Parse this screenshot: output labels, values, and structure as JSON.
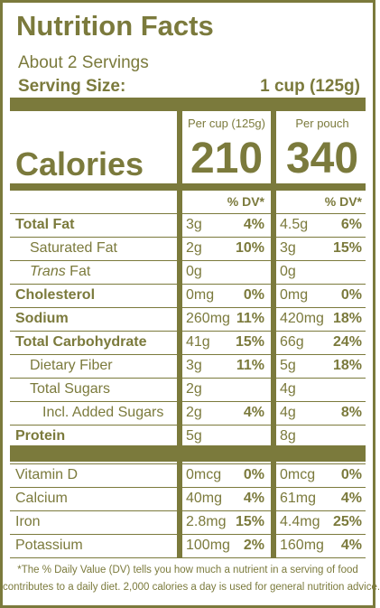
{
  "header": {
    "title": "Nutrition Facts",
    "servings": "About 2 Servings",
    "serving_size_label": "Serving Size:",
    "serving_size_value": "1 cup (125g)"
  },
  "columns": [
    "Per cup (125g)",
    "Per pouch"
  ],
  "calories": {
    "label": "Calories",
    "values": [
      210,
      340
    ]
  },
  "dv_header": [
    "% DV*",
    "% DV*"
  ],
  "nutrients": [
    {
      "name": "Total Fat",
      "bold": true,
      "indent": 0,
      "amounts": [
        "3g",
        "4.5g"
      ],
      "dv": [
        "4%",
        "6%"
      ]
    },
    {
      "name": "Saturated Fat",
      "bold": false,
      "indent": 1,
      "amounts": [
        "2g",
        "3g"
      ],
      "dv": [
        "10%",
        "15%"
      ]
    },
    {
      "name": {
        "italic": "Trans",
        "rest": "Fat"
      },
      "bold": false,
      "indent": 1,
      "amounts": [
        "0g",
        "0g"
      ],
      "dv": [
        null,
        null
      ]
    },
    {
      "name": "Cholesterol",
      "bold": true,
      "indent": 0,
      "amounts": [
        "0mg",
        "0mg"
      ],
      "dv": [
        "0%",
        "0%"
      ]
    },
    {
      "name": "Sodium",
      "bold": true,
      "indent": 0,
      "amounts": [
        "260mg",
        "420mg"
      ],
      "dv": [
        "11%",
        "18%"
      ]
    },
    {
      "name": "Total Carbohydrate",
      "bold": true,
      "indent": 0,
      "amounts": [
        "41g",
        "66g"
      ],
      "dv": [
        "15%",
        "24%"
      ]
    },
    {
      "name": "Dietary Fiber",
      "bold": false,
      "indent": 1,
      "amounts": [
        "3g",
        "5g"
      ],
      "dv": [
        "11%",
        "18%"
      ]
    },
    {
      "name": "Total Sugars",
      "bold": false,
      "indent": 1,
      "amounts": [
        "2g",
        "4g"
      ],
      "dv": [
        null,
        null
      ]
    },
    {
      "name": "Incl. Added Sugars",
      "bold": false,
      "indent": 2,
      "amounts": [
        "2g",
        "4g"
      ],
      "dv": [
        "4%",
        "8%"
      ]
    },
    {
      "name": "Protein",
      "bold": true,
      "indent": 0,
      "amounts": [
        "5g",
        "8g"
      ],
      "dv": [
        null,
        null
      ]
    }
  ],
  "vitamins": [
    {
      "name": "Vitamin D",
      "amounts": [
        "0mcg",
        "0mcg"
      ],
      "dv": [
        "0%",
        "0%"
      ]
    },
    {
      "name": "Calcium",
      "amounts": [
        "40mg",
        "61mg"
      ],
      "dv": [
        "4%",
        "4%"
      ]
    },
    {
      "name": "Iron",
      "amounts": [
        "2.8mg",
        "4.4mg"
      ],
      "dv": [
        "15%",
        "25%"
      ]
    },
    {
      "name": "Potassium",
      "amounts": [
        "100mg",
        "160mg"
      ],
      "dv": [
        "2%",
        "4%"
      ]
    }
  ],
  "footnote": [
    "*The % Daily Value (DV) tells you how much a nutrient in a serving of food",
    "contributes to a daily diet. 2,000 calories a day is used for general nutrition advice."
  ]
}
